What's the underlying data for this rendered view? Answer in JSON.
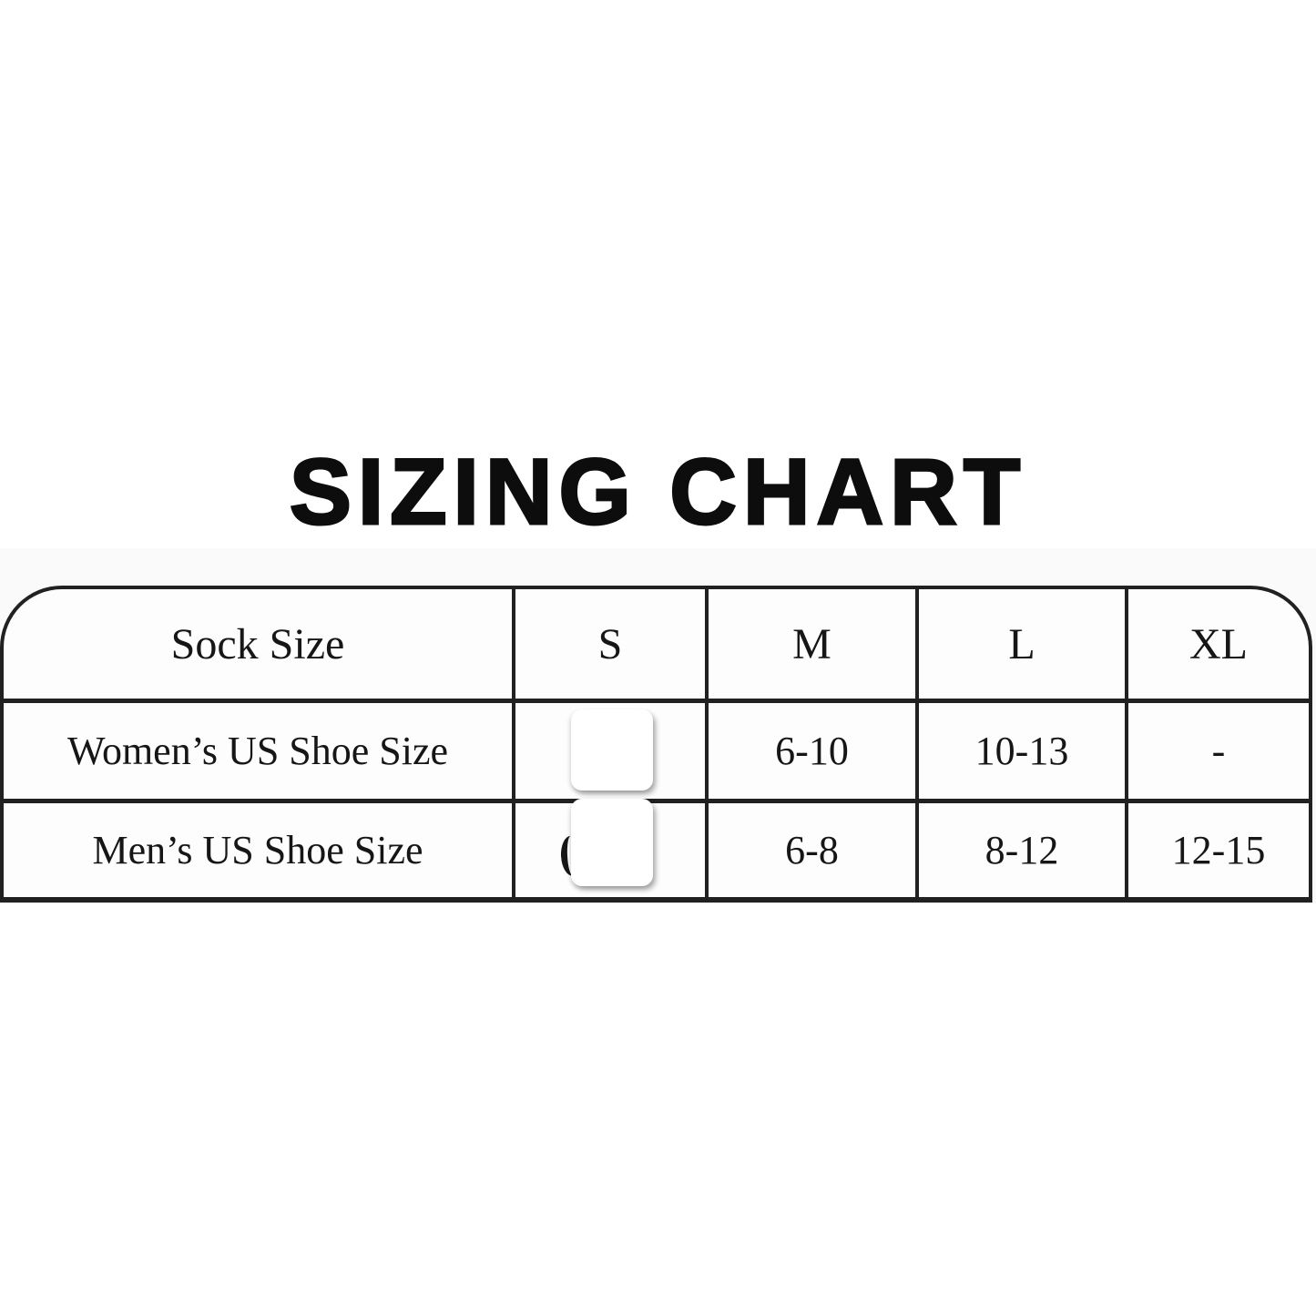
{
  "colors": {
    "background": "#ffffff",
    "table_band": "#fafafa",
    "cell_background": "#fdfdfd",
    "border": "#212121",
    "text": "#161616",
    "sticker": "#ffffff"
  },
  "chart_data": {
    "type": "table",
    "title": "SIZING CHART",
    "columns": [
      "Sock Size",
      "S",
      "M",
      "L",
      "XL"
    ],
    "rows": [
      [
        "Women’s US Shoe Size",
        "",
        "6-10",
        "10-13",
        "-"
      ],
      [
        "Men’s US Shoe Size",
        "",
        "6-8",
        "8-12",
        "12-15"
      ]
    ],
    "s_values_obscured": true,
    "notes": "S-column values are covered by white rounded sticker overlays; a partial digit edge is visible in the Men’s row"
  }
}
